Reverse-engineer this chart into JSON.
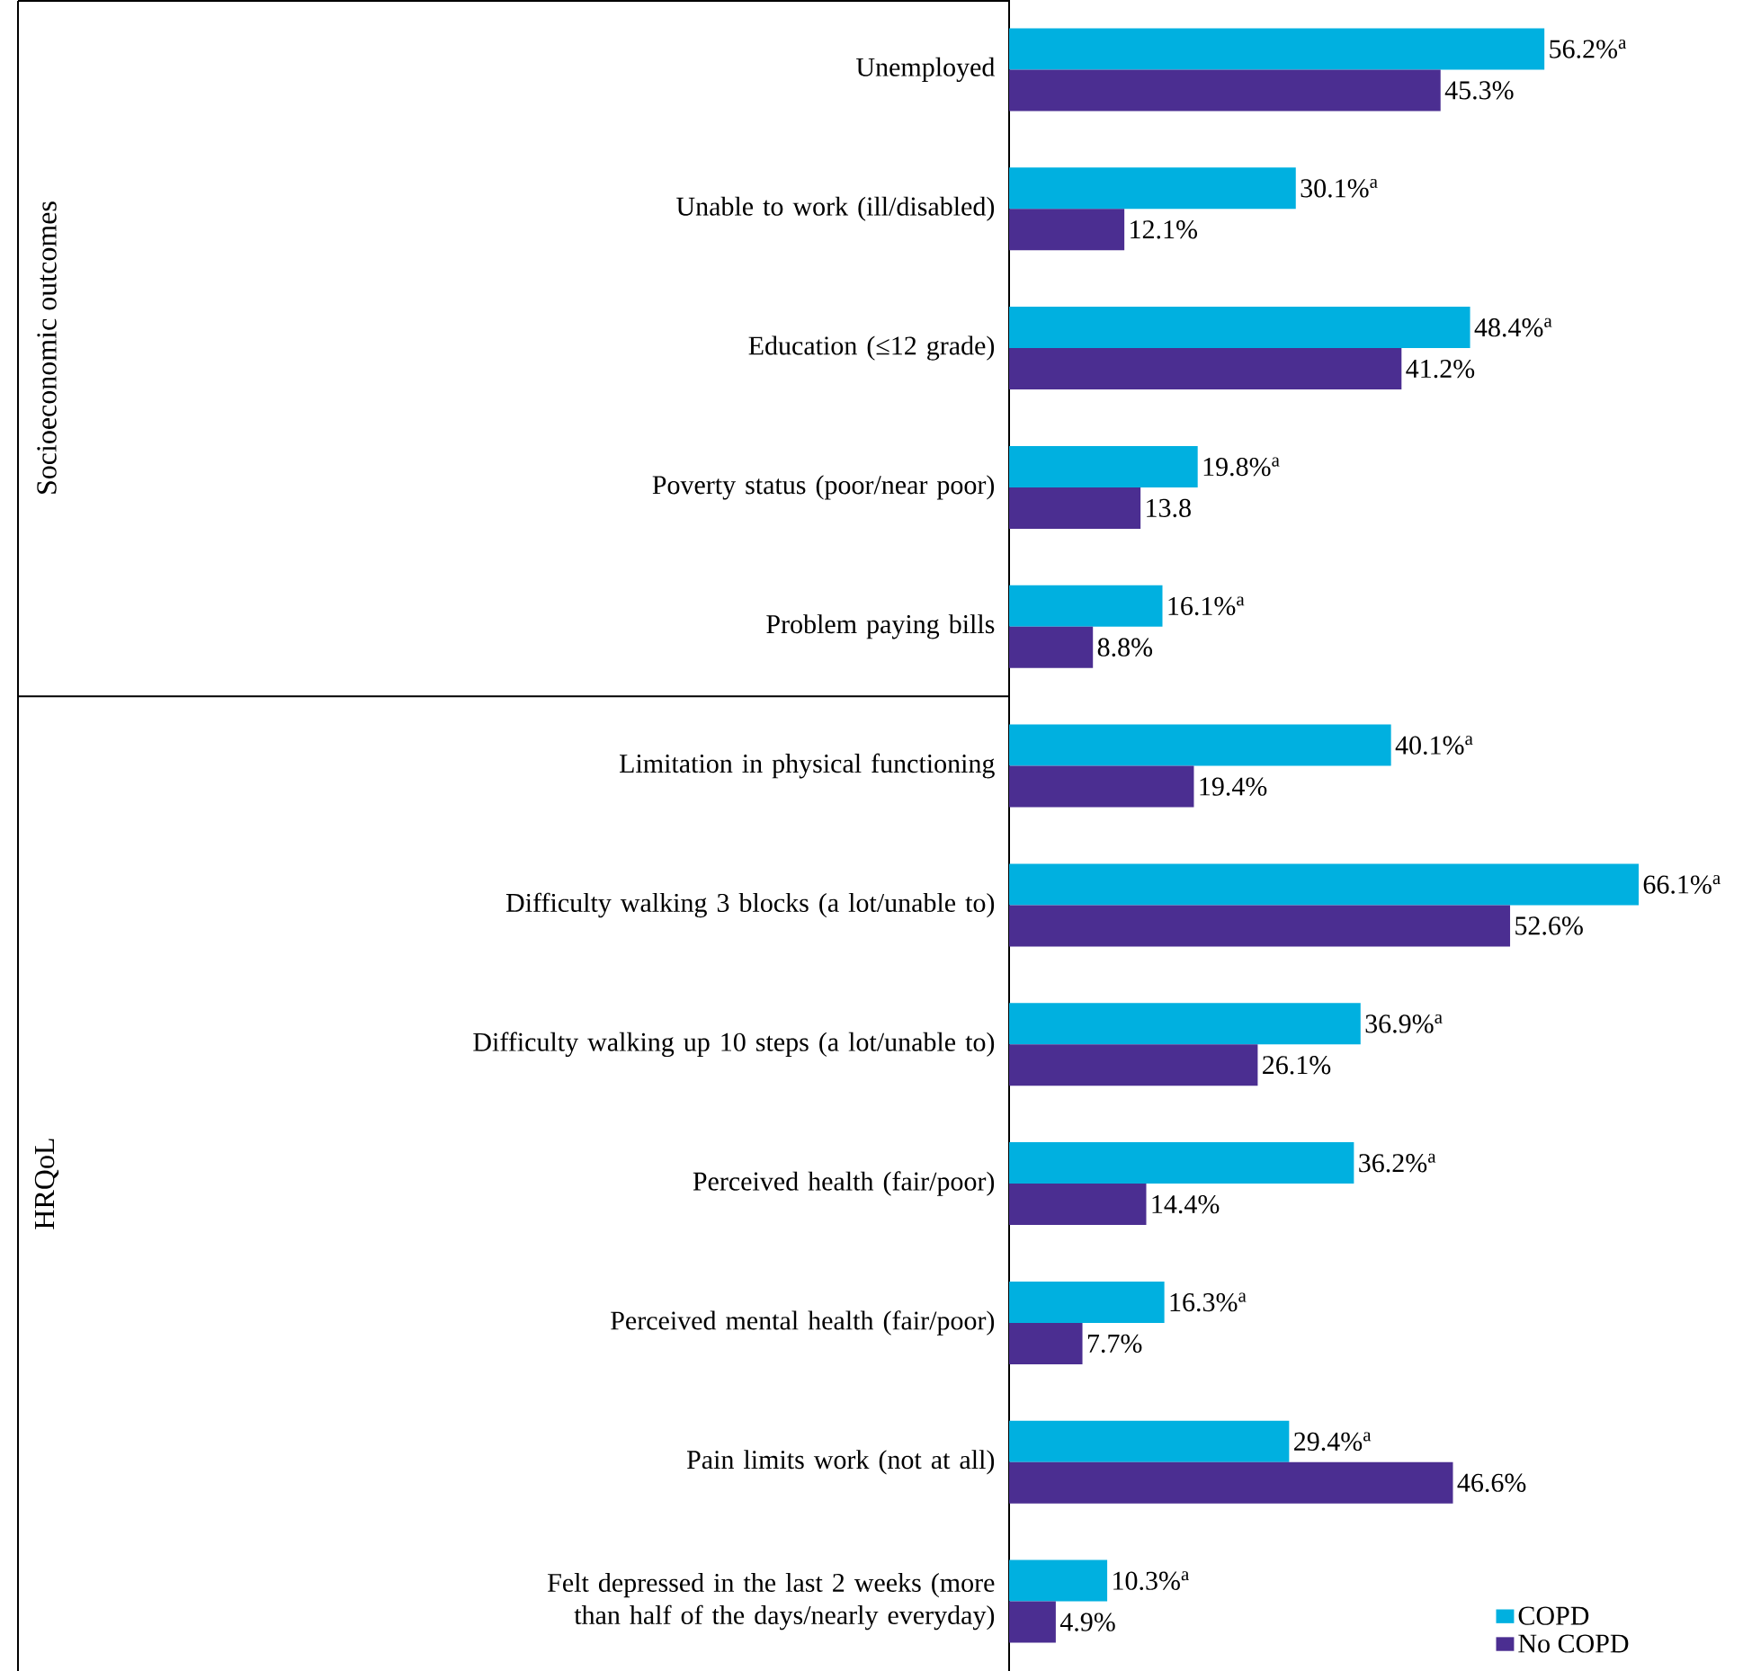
{
  "chart_data": {
    "type": "bar",
    "orientation": "horizontal",
    "categories": [
      "Unemployed",
      "Unable to work (ill/disabled)",
      "Education (≤12 grade)",
      "Poverty status (poor/near poor)",
      "Problem paying bills",
      "Limitation in physical functioning",
      "Difficulty walking 3 blocks (a lot/unable to)",
      "Difficulty walking up 10 steps (a lot/unable to)",
      "Perceived health (fair/poor)",
      "Perceived mental health (fair/poor)",
      "Pain limits work (not at all)",
      "Felt depressed in the last 2 weeks (more than half of the days/nearly everyday)"
    ],
    "series": [
      {
        "name": "COPD",
        "color": "#00b0e0",
        "values": [
          56.2,
          30.1,
          48.4,
          19.8,
          16.1,
          40.1,
          66.1,
          36.9,
          36.2,
          16.3,
          29.4,
          10.3
        ],
        "value_labels": [
          "56.2%$^{a}$",
          "30.1%$^{a}$",
          "48.4%$^{a}$",
          "19.8%$^{a}$",
          "16.1%$^{a}$",
          "40.1%$^{a}$",
          "66.1%$^{a}$",
          "36.9%$^{a}$",
          "36.2%$^{a}$",
          "16.3%$^{a}$",
          "29.4%$^{a}$",
          "10.3%$^{a}$"
        ]
      },
      {
        "name": "No COPD",
        "color": "#4b2e91",
        "values": [
          45.3,
          12.1,
          41.2,
          13.8,
          8.8,
          19.4,
          52.6,
          26.1,
          14.4,
          7.7,
          46.6,
          4.9
        ],
        "value_labels": [
          "45.3%",
          "12.1%",
          "41.2%",
          "13.8",
          "8.8%",
          "19.4%",
          "52.6%",
          "26.1%",
          "14.4%",
          "7.7%",
          "46.6%",
          "4.9%"
        ]
      }
    ],
    "annotations": [
      "Socioeconomic outcomes",
      "HRQoL"
    ],
    "legend": "bottom right"
  }
}
